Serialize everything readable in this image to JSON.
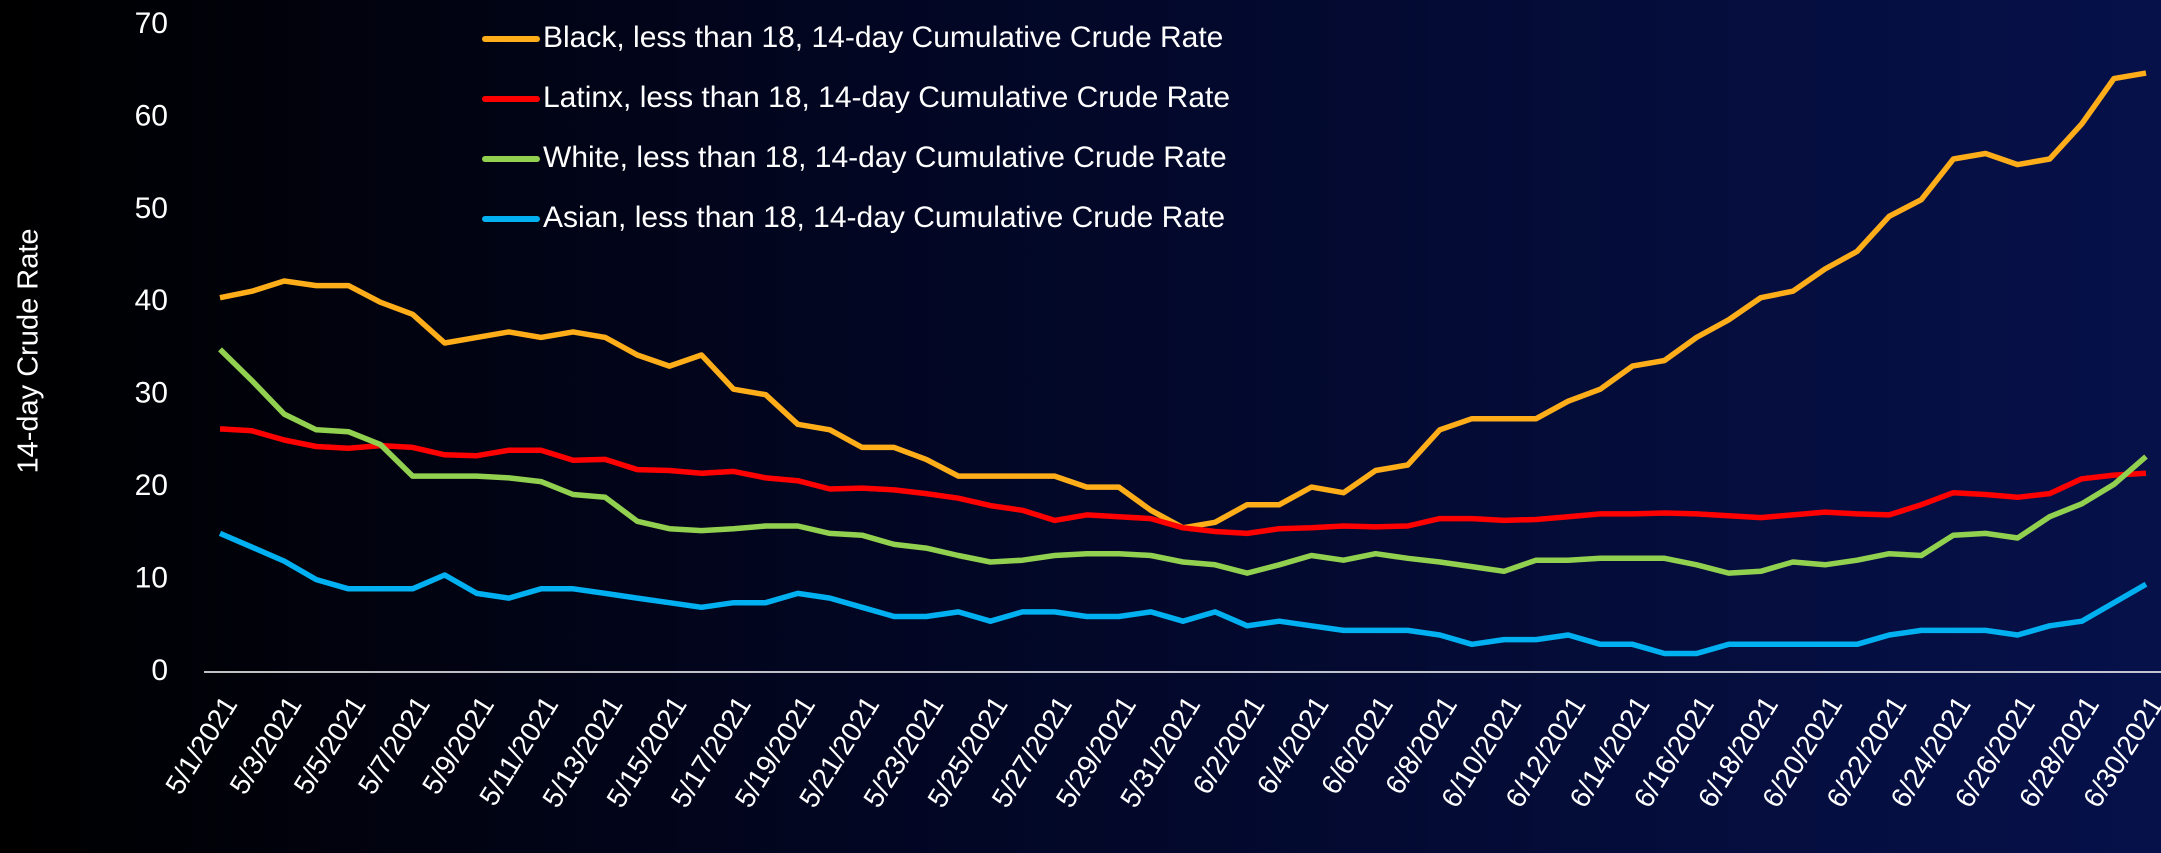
{
  "chart_data": {
    "type": "line",
    "y_label": "14-day Crude Rate",
    "categories": [
      "5/1/2021",
      null,
      "5/3/2021",
      null,
      "5/5/2021",
      null,
      "5/7/2021",
      null,
      "5/9/2021",
      null,
      "5/11/2021",
      null,
      "5/13/2021",
      null,
      "5/15/2021",
      null,
      "5/17/2021",
      null,
      "5/19/2021",
      null,
      "5/21/2021",
      null,
      "5/23/2021",
      null,
      "5/25/2021",
      null,
      "5/27/2021",
      null,
      "5/29/2021",
      null,
      "5/31/2021",
      null,
      "6/2/2021",
      null,
      "6/4/2021",
      null,
      "6/6/2021",
      null,
      "6/8/2021",
      null,
      "6/10/2021",
      null,
      "6/12/2021",
      null,
      "6/14/2021",
      null,
      "6/16/2021",
      null,
      "6/18/2021",
      null,
      "6/20/2021",
      null,
      "6/22/2021",
      null,
      "6/24/2021",
      null,
      "6/26/2021",
      null,
      "6/28/2021",
      null,
      "6/30/2021"
    ],
    "series": [
      {
        "name": "Black, less than 18, 14-day Cumulative Crude Rate",
        "color": "#ffae1a",
        "values": [
          40.5,
          41.2,
          42.3,
          41.8,
          41.8,
          40,
          38.7,
          35.6,
          36.2,
          36.8,
          36.2,
          36.8,
          36.2,
          34.3,
          33.1,
          34.3,
          30.6,
          30,
          26.8,
          26.2,
          24.3,
          24.3,
          23,
          21.2,
          21.2,
          21.2,
          21.2,
          20,
          20,
          17.5,
          15.6,
          16.2,
          18.1,
          18.1,
          20,
          19.4,
          21.8,
          22.4,
          26.2,
          27.4,
          27.4,
          27.4,
          29.3,
          30.6,
          33.1,
          33.7,
          36.2,
          38.1,
          40.5,
          41.2,
          43.6,
          45.5,
          49.3,
          51.1,
          55.5,
          56.1,
          54.9,
          55.5,
          59.3,
          64.2,
          64.8
        ]
      },
      {
        "name": "Latinx, less than 18, 14-day Cumulative Crude Rate",
        "color": "#ff0000",
        "values": [
          26.3,
          26.1,
          25.1,
          24.4,
          24.2,
          24.5,
          24.3,
          23.5,
          23.4,
          24,
          24,
          22.9,
          23,
          21.9,
          21.8,
          21.5,
          21.7,
          21,
          20.7,
          19.8,
          19.9,
          19.7,
          19.3,
          18.8,
          18,
          17.5,
          16.4,
          17,
          16.8,
          16.6,
          15.6,
          15.2,
          15,
          15.5,
          15.6,
          15.8,
          15.7,
          15.8,
          16.6,
          16.6,
          16.4,
          16.5,
          16.8,
          17.1,
          17.1,
          17.2,
          17.1,
          16.9,
          16.7,
          17,
          17.3,
          17.1,
          17,
          18.1,
          19.4,
          19.2,
          18.9,
          19.3,
          20.9,
          21.3,
          21.5
        ]
      },
      {
        "name": "White, less than 18, 14-day Cumulative Crude Rate",
        "color": "#92d050",
        "values": [
          34.9,
          31.5,
          27.9,
          26.2,
          26,
          24.6,
          21.2,
          21.2,
          21.2,
          21,
          20.6,
          19.2,
          18.9,
          16.3,
          15.5,
          15.3,
          15.5,
          15.8,
          15.8,
          15,
          14.8,
          13.8,
          13.4,
          12.6,
          11.9,
          12.1,
          12.6,
          12.8,
          12.8,
          12.6,
          11.9,
          11.6,
          10.7,
          11.6,
          12.6,
          12.1,
          12.8,
          12.3,
          11.9,
          11.4,
          10.9,
          12.1,
          12.1,
          12.3,
          12.3,
          12.3,
          11.6,
          10.7,
          10.9,
          11.9,
          11.6,
          12.1,
          12.8,
          12.6,
          14.8,
          15,
          14.5,
          16.8,
          18.2,
          20.3,
          23.3
        ]
      },
      {
        "name": "Asian, less than 18, 14-day Cumulative Crude Rate",
        "color": "#00b0f0",
        "values": [
          15,
          13.5,
          12,
          10,
          9,
          9,
          9,
          10.5,
          8.5,
          8,
          9,
          9,
          8.5,
          8,
          7.5,
          7,
          7.5,
          7.5,
          8.5,
          8,
          7,
          6,
          6,
          6.5,
          5.5,
          6.5,
          6.5,
          6,
          6,
          6.5,
          5.5,
          6.5,
          5,
          5.5,
          5,
          4.5,
          4.5,
          4.5,
          4,
          3,
          3.5,
          3.5,
          4,
          3,
          3,
          2,
          2,
          3,
          3,
          3,
          3,
          3,
          4,
          4.5,
          4.5,
          4.5,
          4,
          5,
          5.5,
          7.5,
          9.5
        ]
      }
    ],
    "ylim": [
      0,
      70
    ],
    "yticks": [
      0,
      10,
      20,
      30,
      40,
      50,
      60,
      70
    ],
    "grid": false,
    "legend": "top"
  }
}
